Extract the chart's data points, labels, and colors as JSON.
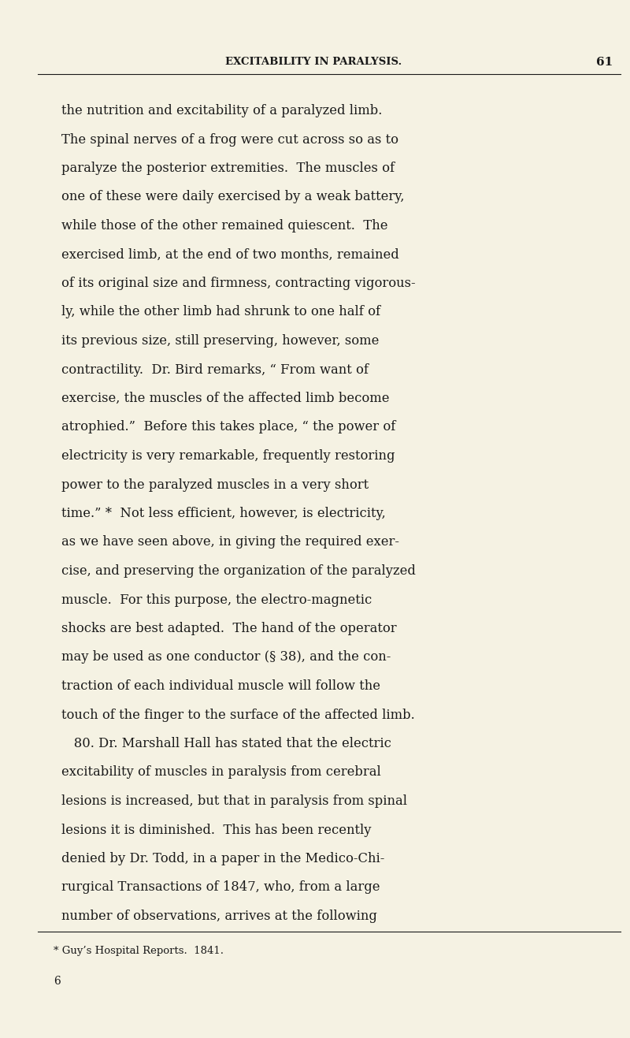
{
  "bg_color": "#f5f2e3",
  "text_color": "#1a1a1a",
  "header_text": "EXCITABILITY IN PARALYSIS.",
  "header_page": "61",
  "footer_note": "* Guy’s Hospital Reports.  1841.",
  "footer_num": "6",
  "body_lines": [
    "the nutrition and excitability of a paralyzed limb.",
    "The spinal nerves of a frog were cut across so as to",
    "paralyze the posterior extremities.  The muscles of",
    "one of these were daily exercised by a weak battery,",
    "while those of the other remained quiescent.  The",
    "exercised limb, at the end of two months, remained",
    "of its original size and firmness, contracting vigorous-",
    "ly, while the other limb had shrunk to one half of",
    "its previous size, still preserving, however, some",
    "contractility.  Dr. Bird remarks, “ From want of",
    "exercise, the muscles of the affected limb become",
    "atrophied.”  Before this takes place, “ the power of",
    "electricity is very remarkable, frequently restoring",
    "power to the paralyzed muscles in a very short",
    "time.” *  Not less efficient, however, is electricity,",
    "as we have seen above, in giving the required exer-",
    "cise, and preserving the organization of the paralyzed",
    "muscle.  For this purpose, the electro-magnetic",
    "shocks are best adapted.  The hand of the operator",
    "may be used as one conductor (§ 38), and the con-",
    "traction of each individual muscle will follow the",
    "touch of the finger to the surface of the affected limb.",
    "   80. Dr. Marshall Hall has stated that the electric",
    "excitability of muscles in paralysis from cerebral",
    "lesions is increased, but that in paralysis from spinal",
    "lesions it is diminished.  This has been recently",
    "denied by Dr. Todd, in a paper in the Medico-Chi-",
    "rurgical Transactions of 1847, who, from a large",
    "number of observations, arrives at the following"
  ],
  "figsize": [
    8.0,
    13.17
  ],
  "dpi": 100
}
